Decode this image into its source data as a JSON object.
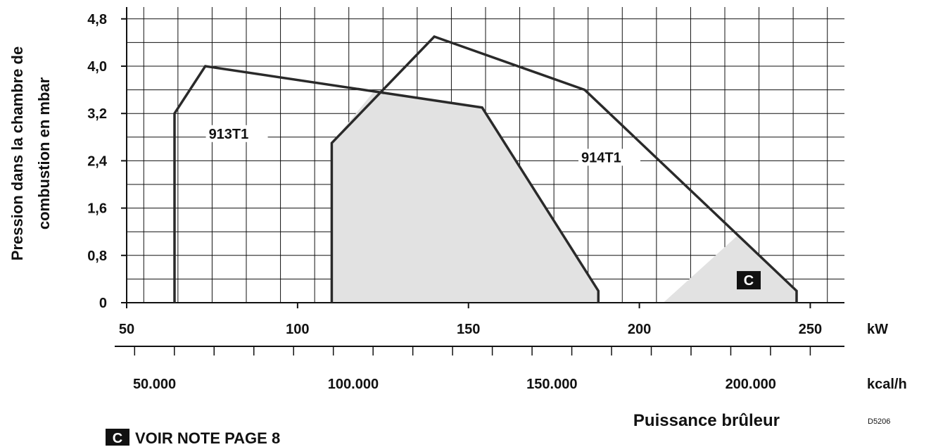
{
  "chart_data": {
    "type": "line",
    "ylabel_lines": [
      "Pression dans la chambre de",
      "combustion en mbar"
    ],
    "xlabel": "Puissance brûleur",
    "x_unit_primary": "kW",
    "x_unit_secondary": "kcal/h",
    "xlim": [
      50,
      260
    ],
    "ylim": [
      0,
      5.0
    ],
    "x_ticks": [
      50,
      100,
      150,
      200,
      250
    ],
    "x_tick_labels": [
      "50",
      "100",
      "150",
      "200",
      "250"
    ],
    "y_ticks": [
      0,
      0.8,
      1.6,
      2.4,
      3.2,
      4.0,
      4.8
    ],
    "y_tick_labels": [
      "0",
      "0,8",
      "1,6",
      "2,4",
      "3,2",
      "4,0",
      "4,8"
    ],
    "kcal_ticks": [
      50000,
      100000,
      150000,
      200000
    ],
    "kcal_tick_labels": [
      "50.000",
      "100.000",
      "150.000",
      "200.000"
    ],
    "grid": true,
    "series": [
      {
        "name": "913T1",
        "x": [
          64,
          64,
          73,
          154,
          188,
          188
        ],
        "y": [
          0,
          3.2,
          4.0,
          3.3,
          0.2,
          0
        ]
      },
      {
        "name": "914T1",
        "x": [
          110,
          110,
          140,
          184,
          246,
          246
        ],
        "y": [
          0,
          2.7,
          4.5,
          3.6,
          0.2,
          0
        ]
      }
    ],
    "series_label_pos": [
      {
        "x": 74,
        "y": 2.8
      },
      {
        "x": 183,
        "y": 2.4
      }
    ],
    "shaded_region": {
      "x": [
        110,
        110,
        122,
        154,
        188,
        188,
        207,
        229,
        246,
        246
      ],
      "y": [
        0,
        2.7,
        3.55,
        3.3,
        0.2,
        0,
        0,
        1.15,
        0.2,
        0
      ]
    },
    "note_marker": "C",
    "note_marker_pos": {
      "x": 232,
      "y": 0.38
    },
    "note_text": "VOIR NOTE PAGE 8",
    "figure_code": "D5206"
  }
}
